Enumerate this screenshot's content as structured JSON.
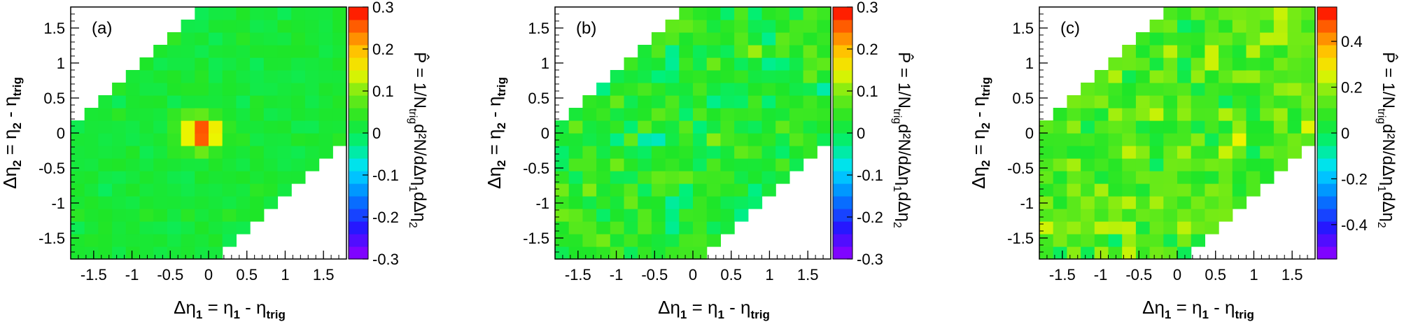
{
  "figure": {
    "panels": [
      {
        "label": "(a)",
        "xlabel": "Δη₁ = η₁ - η_trig",
        "ylabel": "Δη₂ = η₂ - η_trig",
        "zlabel": "P̂ = 1/N_trig d²N/dΔη₁dΔη₂",
        "z_ticks": [
          "-0.3",
          "-0.2",
          "-0.1",
          "0",
          "0.1",
          "0.2",
          "0.3"
        ]
      },
      {
        "label": "(b)",
        "xlabel": "Δη₁ = η₁ - η_trig",
        "ylabel": "Δη₂ = η₂ - η_trig",
        "zlabel": "P̂ = 1/N_trig d²N/dΔη₁dΔη₂",
        "z_ticks": [
          "-0.3",
          "-0.2",
          "-0.1",
          "0",
          "0.1",
          "0.2",
          "0.3"
        ]
      },
      {
        "label": "(c)",
        "xlabel": "Δη₁ = η₁ - η_trig",
        "ylabel": "Δη₂ = η₂ - η_trig",
        "zlabel": "P̂ = 1/N_trig d²N/dΔη₁dΔη₂",
        "z_ticks": [
          "-0.4",
          "-0.2",
          "0",
          "0.2",
          "0.4"
        ]
      }
    ],
    "x_ticks": [
      "-1.5",
      "-1",
      "-0.5",
      "0",
      "0.5",
      "1",
      "1.5"
    ],
    "y_ticks": [
      "-1.5",
      "-1",
      "-0.5",
      "0",
      "0.5",
      "1",
      "1.5"
    ]
  },
  "chart_data": [
    {
      "type": "heatmap",
      "title": "(a)",
      "xlabel": "Δη₁ = η₁ - η_trig",
      "ylabel": "Δη₂ = η₂ - η_trig",
      "zlabel": "P̂ = 1/N_trig d²N/dΔη₁dΔη₂",
      "xlim": [
        -1.8,
        1.8
      ],
      "ylim": [
        -1.8,
        1.8
      ],
      "zlim": [
        -0.3,
        0.3
      ],
      "bins": 20,
      "acceptance": "|Δη₁ - Δη₂| < 1.8",
      "peak": {
        "x": -0.09,
        "y": 0.0,
        "value": 0.3
      },
      "background": 0.02,
      "colorscale": "rainbow (violet-blue-cyan-green-yellow-orange-red)"
    },
    {
      "type": "heatmap",
      "title": "(b)",
      "xlabel": "Δη₁ = η₁ - η_trig",
      "ylabel": "Δη₂ = η₂ - η_trig",
      "zlabel": "P̂ = 1/N_trig d²N/dΔη₁dΔη₂",
      "xlim": [
        -1.8,
        1.8
      ],
      "ylim": [
        -1.8,
        1.8
      ],
      "zlim": [
        -0.3,
        0.3
      ],
      "bins": 20,
      "acceptance": "|Δη₁ - Δη₂| < 1.8",
      "background": 0.03,
      "colorscale": "rainbow (violet-blue-cyan-green-yellow-orange-red)"
    },
    {
      "type": "heatmap",
      "title": "(c)",
      "xlabel": "Δη₁ = η₁ - η_trig",
      "ylabel": "Δη₂ = η₂ - η_trig",
      "zlabel": "P̂ = 1/N_trig d²N/dΔη₁dΔη₂",
      "xlim": [
        -1.8,
        1.8
      ],
      "ylim": [
        -1.8,
        1.8
      ],
      "zlim": [
        -0.55,
        0.55
      ],
      "bins": 20,
      "acceptance": "|Δη₁ - Δη₂| < 1.8",
      "background": 0.12,
      "colorscale": "rainbow (violet-blue-cyan-green-yellow-orange-red)"
    }
  ]
}
